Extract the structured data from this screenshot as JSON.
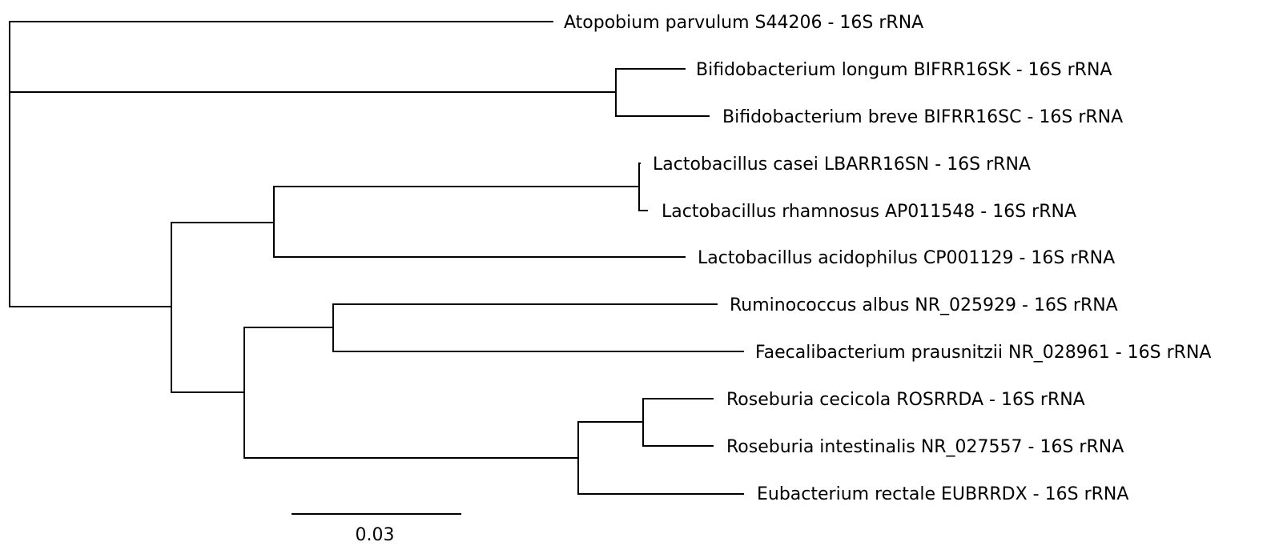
{
  "tree": {
    "leaves": [
      {
        "id": "atopobium",
        "label": "Atopobium parvulum S44206 - 16S rRNA"
      },
      {
        "id": "bifido-longum",
        "label": "Bifidobacterium longum BIFRR16SK - 16S rRNA"
      },
      {
        "id": "bifido-breve",
        "label": "Bifidobacterium breve BIFRR16SC - 16S rRNA"
      },
      {
        "id": "lacto-casei",
        "label": "Lactobacillus casei LBARR16SN - 16S rRNA"
      },
      {
        "id": "lacto-rhamnosus",
        "label": "Lactobacillus rhamnosus AP011548 - 16S rRNA"
      },
      {
        "id": "lacto-acidophilus",
        "label": "Lactobacillus acidophilus CP001129 - 16S rRNA"
      },
      {
        "id": "ruminococcus",
        "label": "Ruminococcus albus NR_025929 - 16S rRNA"
      },
      {
        "id": "faecalibacterium",
        "label": "Faecalibacterium prausnitzii NR_028961 - 16S rRNA"
      },
      {
        "id": "roseburia-cecicola",
        "label": "Roseburia cecicola ROSRRDA - 16S rRNA"
      },
      {
        "id": "roseburia-intestinalis",
        "label": "Roseburia intestinalis NR_027557 - 16S rRNA"
      },
      {
        "id": "eubacterium",
        "label": "Eubacterium rectale EUBRRDX - 16S rRNA"
      }
    ],
    "scale_bar": {
      "value": 0.03,
      "label": "0.03"
    }
  }
}
